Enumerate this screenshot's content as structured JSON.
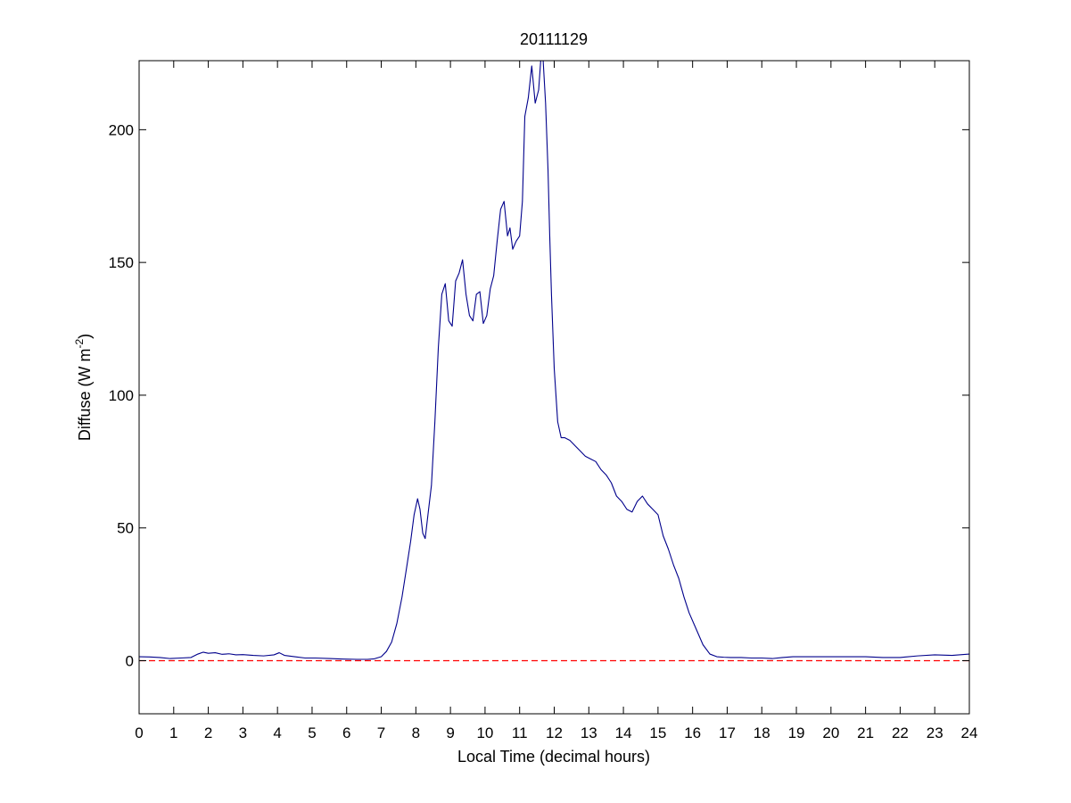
{
  "chart_data": {
    "type": "line",
    "title": "20111129",
    "xlabel": "Local Time (decimal hours)",
    "ylabel": "Diffuse (W m^-2)",
    "ylabel_parts": {
      "main": "Diffuse (W m",
      "sup": "-2",
      "close": ")"
    },
    "xlim": [
      0,
      24
    ],
    "ylim": [
      -20,
      226
    ],
    "xticks": [
      0,
      1,
      2,
      3,
      4,
      5,
      6,
      7,
      8,
      9,
      10,
      11,
      12,
      13,
      14,
      15,
      16,
      17,
      18,
      19,
      20,
      21,
      22,
      23,
      24
    ],
    "yticks": [
      0,
      50,
      100,
      150,
      200
    ],
    "grid": false,
    "legend": "none",
    "colors": {
      "series": "#00008b",
      "reference": "#ff0000",
      "axes": "#000000"
    },
    "reference_line": {
      "y": 0,
      "style": "dashed"
    },
    "series": [
      {
        "x": [
          0,
          0.3,
          0.6,
          0.9,
          1.2,
          1.5,
          1.7,
          1.85,
          2.0,
          2.2,
          2.4,
          2.6,
          2.8,
          3.0,
          3.3,
          3.6,
          3.9,
          4.05,
          4.2,
          4.5,
          4.8,
          5.1,
          5.5,
          5.9,
          6.3,
          6.6,
          6.8,
          7.0,
          7.15,
          7.3,
          7.45,
          7.6,
          7.72,
          7.85,
          7.95,
          8.05,
          8.12,
          8.2,
          8.27,
          8.35,
          8.45,
          8.55,
          8.65,
          8.75,
          8.85,
          8.95,
          9.05,
          9.15,
          9.25,
          9.35,
          9.45,
          9.55,
          9.65,
          9.75,
          9.85,
          9.95,
          10.05,
          10.15,
          10.25,
          10.35,
          10.45,
          10.55,
          10.65,
          10.72,
          10.8,
          10.9,
          11.0,
          11.08,
          11.15,
          11.25,
          11.35,
          11.45,
          11.55,
          11.62,
          11.68,
          11.75,
          11.82,
          11.87,
          11.92,
          12.0,
          12.1,
          12.2,
          12.3,
          12.45,
          12.6,
          12.75,
          12.9,
          13.05,
          13.2,
          13.35,
          13.5,
          13.65,
          13.8,
          13.95,
          14.1,
          14.25,
          14.4,
          14.55,
          14.7,
          14.85,
          15.0,
          15.15,
          15.3,
          15.45,
          15.6,
          15.75,
          15.9,
          16.1,
          16.3,
          16.5,
          16.7,
          16.9,
          17.1,
          17.4,
          17.7,
          18.0,
          18.3,
          18.6,
          18.9,
          19.2,
          19.6,
          20.0,
          20.5,
          21.0,
          21.5,
          22.0,
          22.5,
          23.0,
          23.5,
          24.0
        ],
        "y": [
          1.5,
          1.4,
          1.2,
          0.8,
          1.0,
          1.2,
          2.5,
          3.2,
          2.8,
          3.0,
          2.4,
          2.6,
          2.2,
          2.3,
          2.0,
          1.8,
          2.2,
          3.0,
          2.0,
          1.5,
          1.0,
          1.0,
          0.8,
          0.6,
          0.5,
          0.5,
          0.7,
          1.5,
          3.5,
          7,
          14,
          24,
          34,
          45,
          55,
          61,
          57,
          48,
          46,
          55,
          66,
          90,
          118,
          138,
          142,
          128,
          126,
          143,
          146,
          151,
          138,
          130,
          128,
          138,
          139,
          127,
          130,
          140,
          145,
          158,
          170,
          173,
          160,
          163,
          155,
          158,
          160,
          173,
          205,
          212,
          224,
          210,
          215,
          228,
          226,
          210,
          185,
          160,
          138,
          110,
          90,
          84,
          84,
          83,
          81,
          79,
          77,
          76,
          75,
          72,
          70,
          67,
          62,
          60,
          57,
          56,
          60,
          62,
          59,
          57,
          55,
          47,
          42,
          36,
          31,
          24,
          18,
          12,
          6,
          2.5,
          1.5,
          1.3,
          1.2,
          1.2,
          1.0,
          1.0,
          0.8,
          1.2,
          1.5,
          1.5,
          1.5,
          1.5,
          1.5,
          1.5,
          1.2,
          1.2,
          1.8,
          2.2,
          2.0,
          2.5
        ]
      }
    ]
  }
}
